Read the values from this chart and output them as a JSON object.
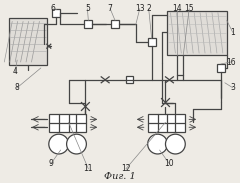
{
  "title": "Фиг. 1",
  "bg_color": "#eeebe5",
  "line_color": "#444444",
  "label_color": "#222222",
  "lw": 0.9
}
